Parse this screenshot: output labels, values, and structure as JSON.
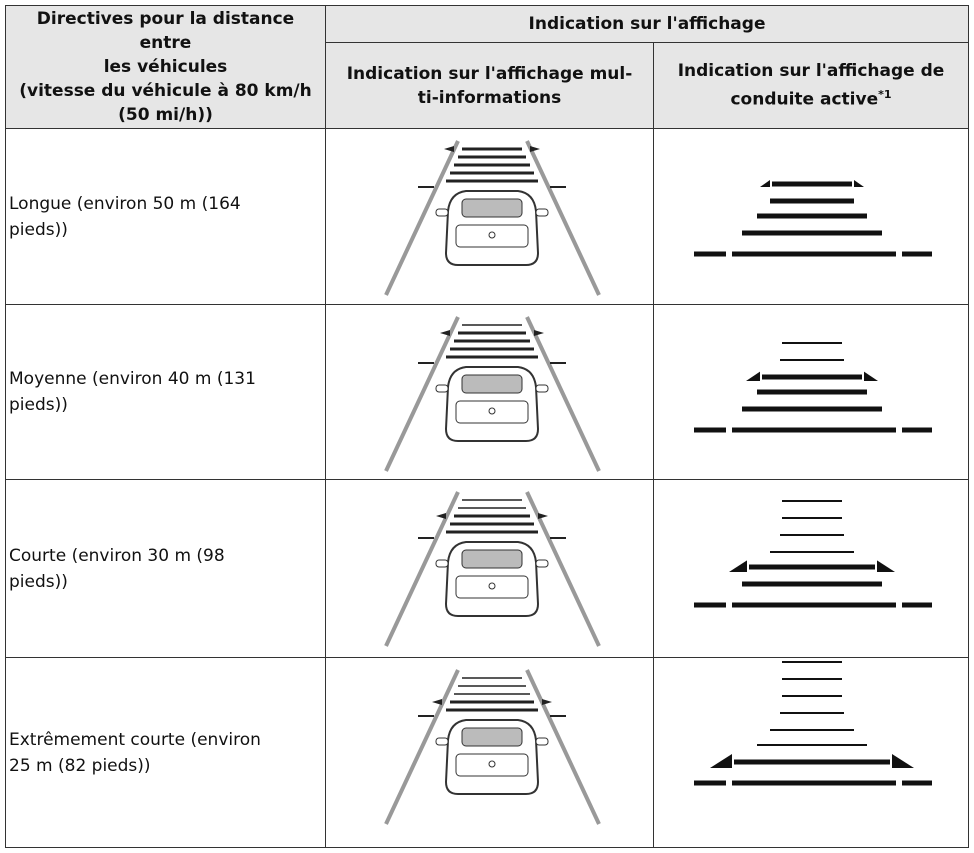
{
  "table": {
    "header": {
      "col1": [
        "Directives pour la distance entre",
        "les véhicules",
        "(vitesse du véhicule à 80 km/h",
        "(50 mi/h))"
      ],
      "group": "Indication sur l'affichage",
      "col2": [
        "Indication sur l'affichage mul-",
        "ti-informations"
      ],
      "col3": [
        "Indication sur l'affichage de",
        "conduite active"
      ],
      "col3_note": "*1"
    },
    "rows": [
      "Longue (environ 50 m (164 pieds))",
      "Moyenne (environ 40 m (131 pieds))",
      "Courte (environ 30 m (98 pieds))",
      "Extrêmement courte (environ 25 m (82 pieds))"
    ]
  }
}
